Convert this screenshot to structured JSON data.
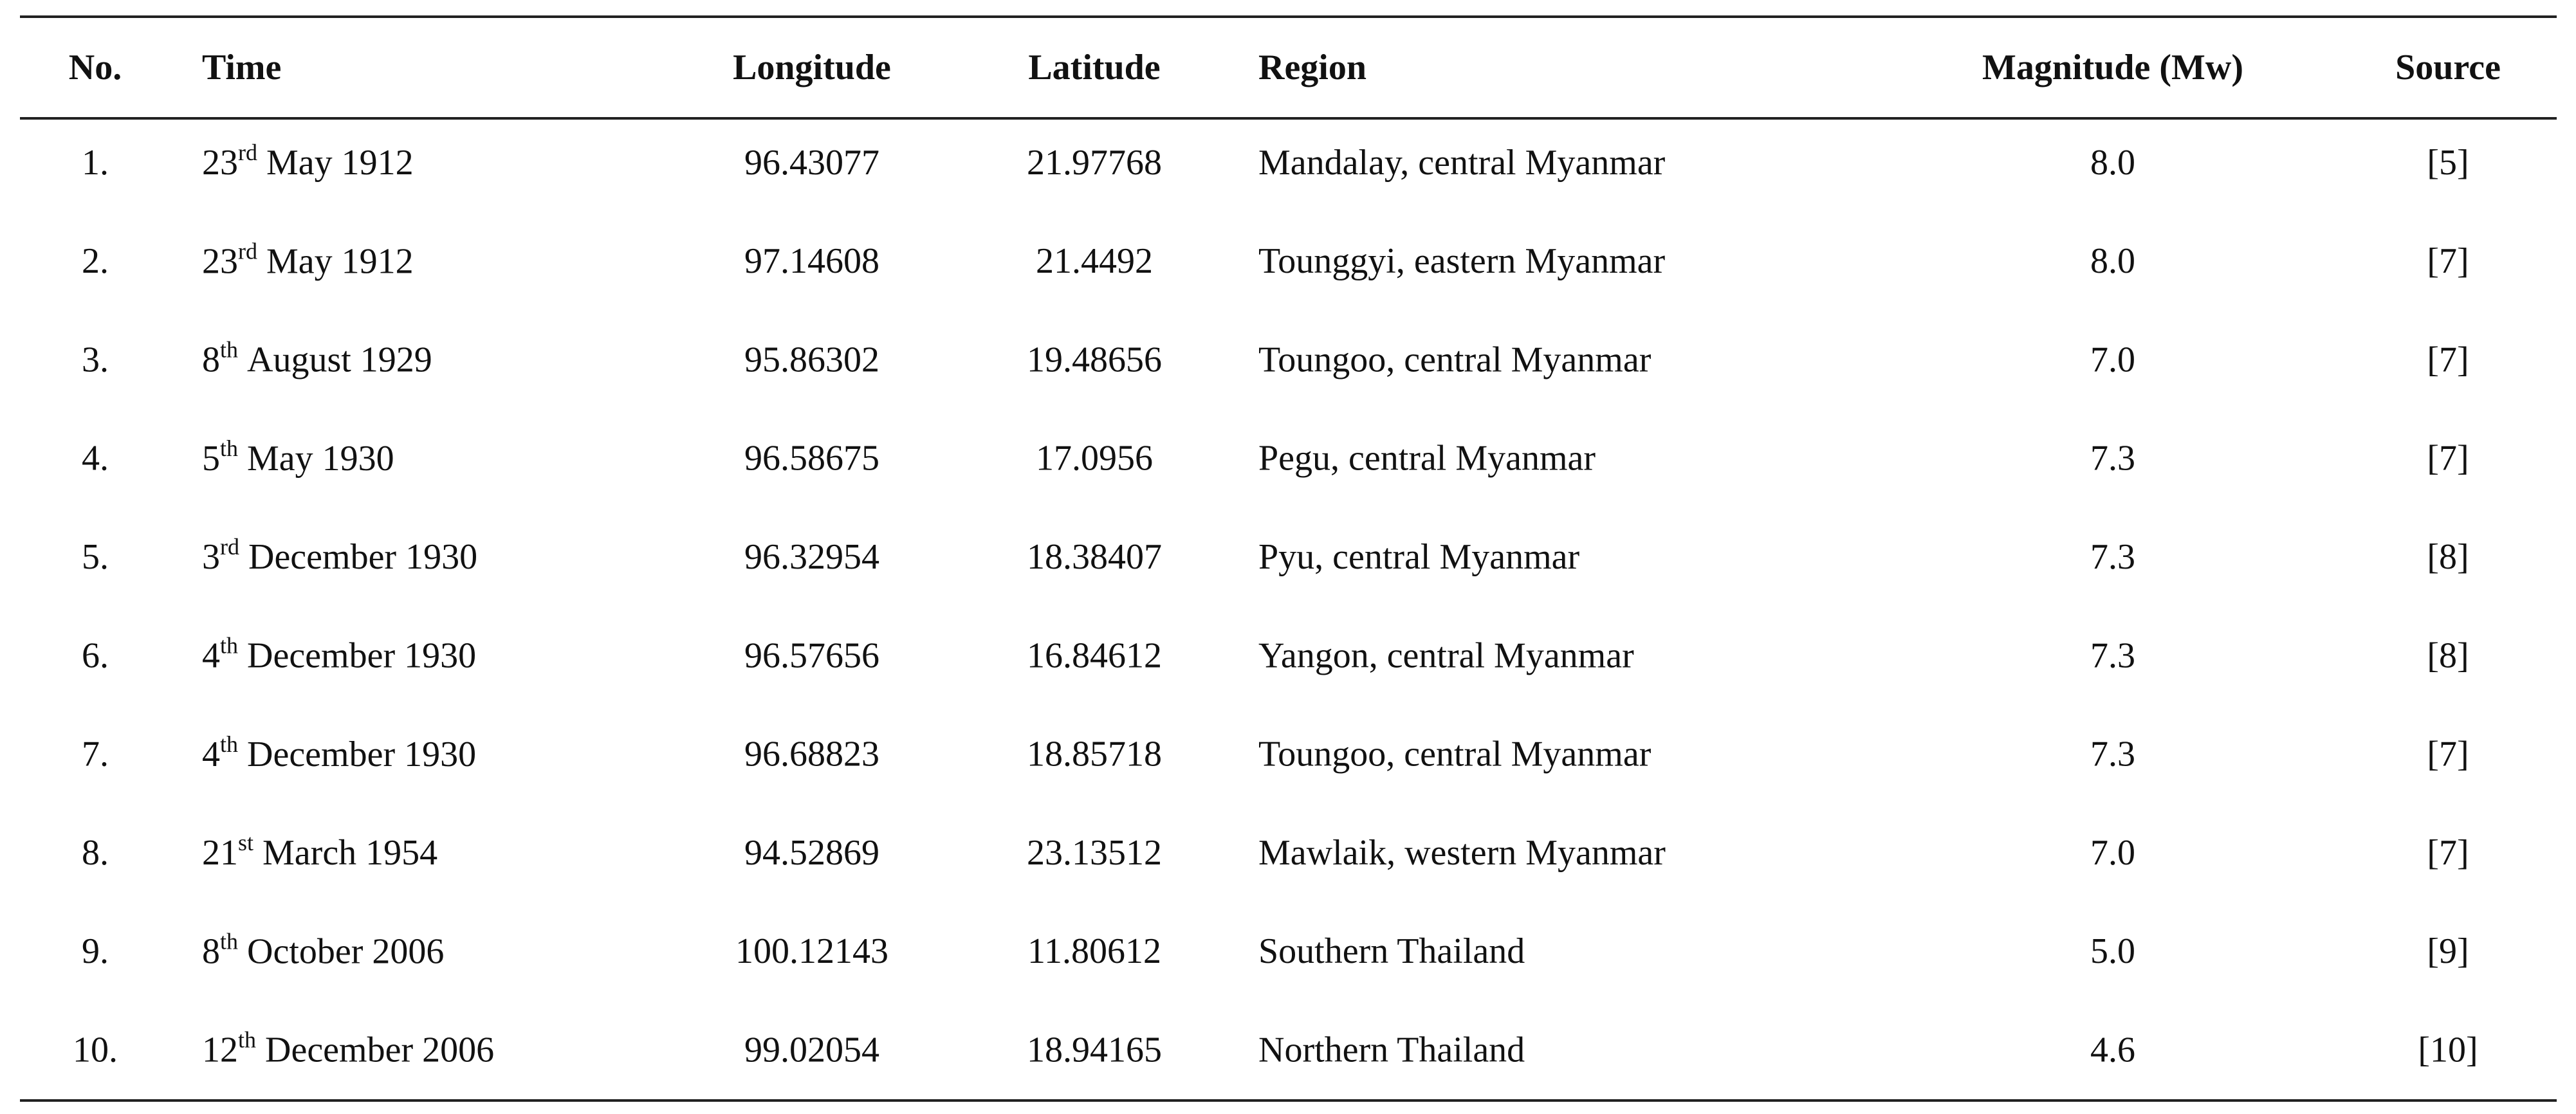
{
  "table": {
    "header": [
      "No.",
      "Time",
      "Longitude",
      "Latitude",
      "Region",
      "Magnitude (Mw)",
      "Source"
    ],
    "rows": [
      {
        "no": "1.",
        "time": {
          "day": "23",
          "suffix": "rd",
          "rest": "May 1912"
        },
        "longitude": "96.43077",
        "latitude": "21.97768",
        "region": "Mandalay, central Myanmar",
        "magnitude": "8.0",
        "source": "[5]"
      },
      {
        "no": "2.",
        "time": {
          "day": "23",
          "suffix": "rd",
          "rest": "May 1912"
        },
        "longitude": "97.14608",
        "latitude": "21.4492",
        "region": "Tounggyi, eastern Myanmar",
        "magnitude": "8.0",
        "source": "[7]"
      },
      {
        "no": "3.",
        "time": {
          "day": "8",
          "suffix": "th",
          "rest": "August 1929"
        },
        "longitude": "95.86302",
        "latitude": "19.48656",
        "region": "Toungoo, central Myanmar",
        "magnitude": "7.0",
        "source": "[7]"
      },
      {
        "no": "4.",
        "time": {
          "day": "5",
          "suffix": "th",
          "rest": "May 1930"
        },
        "longitude": "96.58675",
        "latitude": "17.0956",
        "region": "Pegu, central Myanmar",
        "magnitude": "7.3",
        "source": "[7]"
      },
      {
        "no": "5.",
        "time": {
          "day": "3",
          "suffix": "rd",
          "rest": "December 1930"
        },
        "longitude": "96.32954",
        "latitude": "18.38407",
        "region": "Pyu, central Myanmar",
        "magnitude": "7.3",
        "source": "[8]"
      },
      {
        "no": "6.",
        "time": {
          "day": "4",
          "suffix": "th",
          "rest": "December 1930"
        },
        "longitude": "96.57656",
        "latitude": "16.84612",
        "region": "Yangon, central Myanmar",
        "magnitude": "7.3",
        "source": "[8]"
      },
      {
        "no": "7.",
        "time": {
          "day": "4",
          "suffix": "th",
          "rest": "December 1930"
        },
        "longitude": "96.68823",
        "latitude": "18.85718",
        "region": "Toungoo, central Myanmar",
        "magnitude": "7.3",
        "source": "[7]"
      },
      {
        "no": "8.",
        "time": {
          "day": "21",
          "suffix": "st",
          "rest": "March 1954"
        },
        "longitude": "94.52869",
        "latitude": "23.13512",
        "region": "Mawlaik, western Myanmar",
        "magnitude": "7.0",
        "source": "[7]"
      },
      {
        "no": "9.",
        "time": {
          "day": "8",
          "suffix": "th",
          "rest": "October 2006"
        },
        "longitude": "100.12143",
        "latitude": "11.80612",
        "region": "Southern Thailand",
        "magnitude": "5.0",
        "source": "[9]"
      },
      {
        "no": "10.",
        "time": {
          "day": "12",
          "suffix": "th",
          "rest": "December 2006"
        },
        "longitude": "99.02054",
        "latitude": "18.94165",
        "region": "Northern Thailand",
        "magnitude": "4.6",
        "source": "[10]"
      }
    ]
  }
}
